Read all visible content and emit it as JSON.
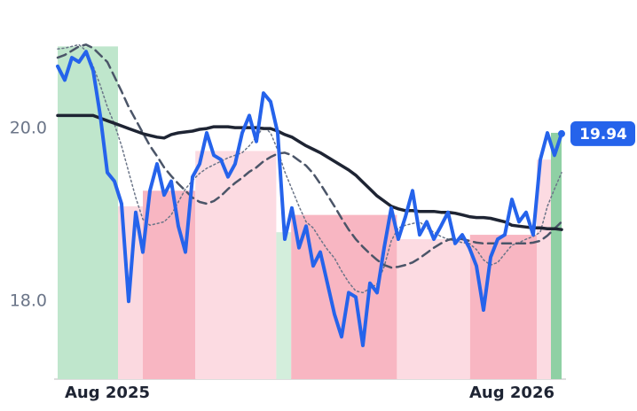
{
  "chart_data": {
    "type": "line",
    "categories": [
      null,
      null,
      null,
      null,
      null,
      null,
      null,
      "Aug 2025",
      null,
      null,
      null,
      null,
      null,
      null,
      null,
      null,
      null,
      null,
      null,
      null,
      null,
      null,
      null,
      null,
      null,
      null,
      null,
      null,
      null,
      null,
      null,
      null,
      null,
      null,
      null,
      null,
      null,
      null,
      null,
      null,
      null,
      null,
      null,
      null,
      null,
      null,
      null,
      null,
      null,
      null,
      null,
      null,
      null,
      null,
      null,
      null,
      null,
      null,
      null,
      null,
      null,
      null,
      null,
      null,
      "Aug 2026",
      null,
      null,
      null,
      null,
      null,
      null,
      null
    ],
    "series": [
      {
        "color": "#2563eb",
        "dash": "solid",
        "values": [
          20.72,
          20.56,
          20.82,
          20.77,
          20.89,
          20.67,
          20.15,
          19.49,
          19.39,
          19.13,
          18.0,
          19.03,
          18.57,
          19.28,
          19.59,
          19.23,
          19.39,
          18.87,
          18.57,
          19.44,
          19.59,
          19.95,
          19.69,
          19.64,
          19.44,
          19.59,
          19.95,
          20.15,
          19.85,
          20.41,
          20.31,
          19.95,
          18.72,
          19.08,
          18.62,
          18.87,
          18.41,
          18.57,
          18.21,
          17.85,
          17.59,
          18.1,
          18.05,
          17.49,
          18.21,
          18.1,
          18.62,
          19.08,
          18.72,
          18.98,
          19.28,
          18.77,
          18.92,
          18.72,
          18.87,
          19.03,
          18.67,
          18.77,
          18.62,
          18.41,
          17.9,
          18.51,
          18.72,
          18.77,
          19.18,
          18.92,
          19.03,
          18.77,
          19.64,
          19.95,
          19.69,
          19.94
        ]
      },
      {
        "color": "#1e2433",
        "dash": "solid",
        "values": [
          20.15,
          20.15,
          20.15,
          20.15,
          20.15,
          20.15,
          20.12,
          20.09,
          20.06,
          20.03,
          20.0,
          19.97,
          19.94,
          19.92,
          19.9,
          19.89,
          19.93,
          19.95,
          19.96,
          19.97,
          19.99,
          20.0,
          20.02,
          20.02,
          20.02,
          20.01,
          20.01,
          20.01,
          20.01,
          20.0,
          20.0,
          19.97,
          19.93,
          19.9,
          19.85,
          19.8,
          19.76,
          19.72,
          19.67,
          19.62,
          19.57,
          19.52,
          19.46,
          19.38,
          19.3,
          19.22,
          19.16,
          19.1,
          19.07,
          19.05,
          19.05,
          19.04,
          19.04,
          19.04,
          19.03,
          19.03,
          19.02,
          19.0,
          18.98,
          18.97,
          18.97,
          18.96,
          18.94,
          18.92,
          18.88,
          18.87,
          18.86,
          18.85,
          18.85,
          18.84,
          18.84,
          18.83
        ]
      },
      {
        "color": "#4b5568",
        "dash": "dashed",
        "values": [
          20.82,
          20.85,
          20.9,
          20.95,
          20.97,
          20.93,
          20.85,
          20.77,
          20.6,
          20.43,
          20.25,
          20.1,
          19.95,
          19.8,
          19.68,
          19.55,
          19.45,
          19.36,
          19.28,
          19.2,
          19.15,
          19.13,
          19.16,
          19.22,
          19.3,
          19.37,
          19.43,
          19.5,
          19.55,
          19.62,
          19.67,
          19.71,
          19.72,
          19.69,
          19.63,
          19.57,
          19.48,
          19.36,
          19.23,
          19.1,
          18.96,
          18.83,
          18.72,
          18.63,
          18.55,
          18.48,
          18.42,
          18.39,
          18.4,
          18.42,
          18.45,
          18.5,
          18.56,
          18.62,
          18.67,
          18.71,
          18.73,
          18.72,
          18.7,
          18.68,
          18.67,
          18.67,
          18.67,
          18.67,
          18.67,
          18.67,
          18.67,
          18.68,
          18.7,
          18.76,
          18.84,
          18.92
        ]
      },
      {
        "color": "#6b7588",
        "dash": "dotted",
        "values": [
          20.92,
          20.93,
          20.95,
          20.97,
          20.9,
          20.72,
          20.5,
          20.25,
          20.05,
          19.8,
          19.5,
          19.2,
          18.95,
          18.88,
          18.9,
          18.92,
          19.0,
          19.15,
          19.3,
          19.4,
          19.48,
          19.54,
          19.58,
          19.62,
          19.66,
          19.69,
          19.72,
          19.8,
          19.9,
          20.02,
          19.95,
          19.75,
          19.5,
          19.3,
          19.1,
          18.92,
          18.85,
          18.72,
          18.6,
          18.5,
          18.35,
          18.22,
          18.12,
          18.1,
          18.15,
          18.2,
          18.4,
          18.7,
          18.85,
          18.88,
          18.9,
          18.92,
          18.85,
          18.8,
          18.75,
          18.72,
          18.7,
          18.68,
          18.67,
          18.6,
          18.48,
          18.42,
          18.45,
          18.55,
          18.65,
          18.68,
          18.72,
          18.75,
          18.8,
          19.1,
          19.3,
          19.49
        ]
      }
    ],
    "bands": [
      {
        "start": 0,
        "end": 8.5,
        "top": 20.95,
        "color": "#bfe6cc"
      },
      {
        "start": 8.5,
        "end": 12,
        "top": 19.1,
        "color": "#fbd9e0"
      },
      {
        "start": 12,
        "end": 19.4,
        "top": 19.28,
        "color": "#f8b6c2"
      },
      {
        "start": 19.4,
        "end": 30.8,
        "top": 19.74,
        "color": "#fcdbe2"
      },
      {
        "start": 30.8,
        "end": 32.9,
        "top": 18.8,
        "color": "#d3eedc"
      },
      {
        "start": 32.9,
        "end": 47.8,
        "top": 19.0,
        "color": "#f8b6c2"
      },
      {
        "start": 47.8,
        "end": 58.1,
        "top": 18.72,
        "color": "#fcdbe2"
      },
      {
        "start": 58.1,
        "end": 67.5,
        "top": 18.77,
        "color": "#f8b6c2"
      },
      {
        "start": 67.5,
        "end": 69.5,
        "top": 19.64,
        "color": "#fcdbe2"
      },
      {
        "start": 69.5,
        "end": 71,
        "top": 19.95,
        "color": "#8fd0a4"
      }
    ],
    "ylim": [
      17.1,
      21.2
    ],
    "yticks": [
      {
        "value": 18,
        "label": "18.0"
      },
      {
        "value": 20,
        "label": "20.0"
      }
    ],
    "grid": false
  }
}
